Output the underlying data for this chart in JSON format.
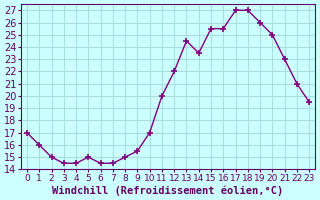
{
  "hours": [
    0,
    1,
    2,
    3,
    4,
    5,
    6,
    7,
    8,
    9,
    10,
    11,
    12,
    13,
    14,
    15,
    16,
    17,
    18,
    19,
    20,
    21,
    22,
    23
  ],
  "values": [
    17,
    16,
    15,
    14.5,
    14.5,
    15,
    14.5,
    14.5,
    15,
    15.5,
    17,
    20,
    22,
    24.5,
    23.5,
    25.5,
    25.5,
    27,
    27,
    26,
    25,
    23,
    21,
    19.5
  ],
  "line_color": "#800080",
  "marker_color": "#800080",
  "bg_color": "#ccffff",
  "grid_color": "#aadddd",
  "xlabel": "Windchill (Refroidissement éolien,°C)",
  "ylim": [
    14,
    27.5
  ],
  "xlim": [
    -0.5,
    23.5
  ],
  "yticks": [
    14,
    15,
    16,
    17,
    18,
    19,
    20,
    21,
    22,
    23,
    24,
    25,
    26,
    27
  ],
  "xtick_labels": [
    "0",
    "1",
    "2",
    "3",
    "4",
    "5",
    "6",
    "7",
    "8",
    "9",
    "10",
    "11",
    "12",
    "13",
    "14",
    "15",
    "16",
    "17",
    "18",
    "19",
    "20",
    "21",
    "22",
    "23"
  ],
  "axis_color": "#660066",
  "tick_color": "#660066",
  "xlabel_color": "#660066",
  "font_size": 7,
  "xlabel_fontsize": 7.5
}
